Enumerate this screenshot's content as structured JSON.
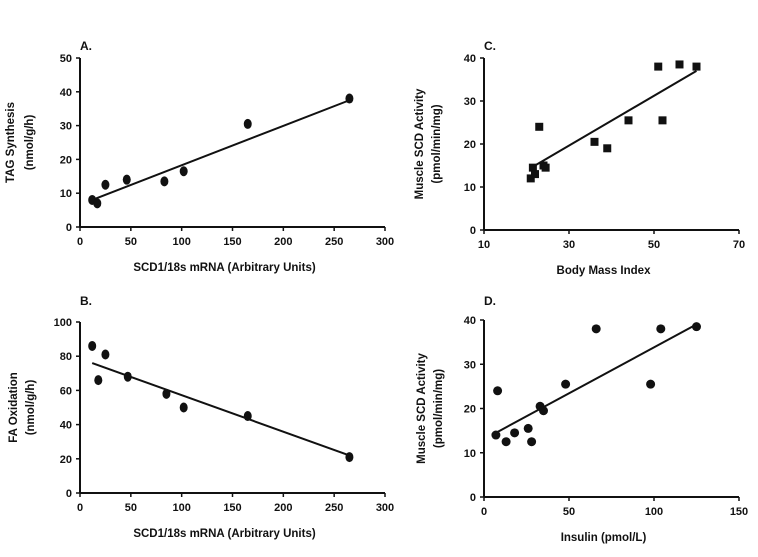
{
  "chart_data": [
    {
      "panel": "A.",
      "type": "scatter",
      "xlabel": "SCD1/18s mRNA (Arbitrary Units)",
      "ylabel": [
        "TAG Synthesis",
        "(nmol/g/h)"
      ],
      "xlim": [
        0,
        300
      ],
      "ylim": [
        0,
        50
      ],
      "xticks": [
        0,
        50,
        100,
        150,
        200,
        250,
        300
      ],
      "yticks": [
        0,
        10,
        20,
        30,
        40,
        50
      ],
      "points": [
        [
          12,
          8
        ],
        [
          17,
          7
        ],
        [
          25,
          12.5
        ],
        [
          46,
          14
        ],
        [
          83,
          13.5
        ],
        [
          102,
          16.5
        ],
        [
          165,
          30.5
        ],
        [
          265,
          38
        ]
      ],
      "fit": [
        [
          12,
          8
        ],
        [
          265,
          37.5
        ]
      ]
    },
    {
      "panel": "B.",
      "type": "scatter",
      "xlabel": "SCD1/18s mRNA (Arbitrary Units)",
      "ylabel": [
        "FA Oxidation",
        "(nmol/g/h)"
      ],
      "xlim": [
        0,
        300
      ],
      "ylim": [
        0,
        100
      ],
      "xticks": [
        0,
        50,
        100,
        150,
        200,
        250,
        300
      ],
      "yticks": [
        0,
        20,
        40,
        60,
        80,
        100
      ],
      "points": [
        [
          12,
          86
        ],
        [
          18,
          66
        ],
        [
          25,
          81
        ],
        [
          47,
          68
        ],
        [
          85,
          58
        ],
        [
          102,
          50
        ],
        [
          165,
          45
        ],
        [
          265,
          21
        ]
      ],
      "fit": [
        [
          12,
          76
        ],
        [
          265,
          22
        ]
      ]
    },
    {
      "panel": "C.",
      "type": "scatter",
      "xlabel": "Body Mass Index",
      "ylabel": [
        "Muscle SCD Activity",
        "(pmol/min/mg)"
      ],
      "xlim": [
        10,
        70
      ],
      "ylim": [
        0,
        40
      ],
      "xticks": [
        10,
        30,
        50,
        70
      ],
      "yticks": [
        0,
        10,
        20,
        30,
        40
      ],
      "points": [
        [
          21,
          12
        ],
        [
          21.5,
          14.5
        ],
        [
          22,
          13
        ],
        [
          23,
          24
        ],
        [
          24,
          15
        ],
        [
          24.5,
          14.5
        ],
        [
          36,
          20.5
        ],
        [
          39,
          19
        ],
        [
          44,
          25.5
        ],
        [
          51,
          38
        ],
        [
          52,
          25.5
        ],
        [
          56,
          38.5
        ],
        [
          60,
          38
        ]
      ],
      "fit": [
        [
          22,
          15
        ],
        [
          60,
          37
        ]
      ]
    },
    {
      "panel": "D.",
      "type": "scatter",
      "xlabel": "Insulin (pmol/L)",
      "ylabel": [
        "Muscle SCD Activity",
        "(pmol/min/mg)"
      ],
      "xlim": [
        0,
        150
      ],
      "ylim": [
        0,
        40
      ],
      "xticks": [
        0,
        50,
        100,
        150
      ],
      "yticks": [
        0,
        10,
        20,
        30,
        40
      ],
      "points": [
        [
          7,
          14
        ],
        [
          8,
          24
        ],
        [
          13,
          12.5
        ],
        [
          18,
          14.5
        ],
        [
          26,
          15.5
        ],
        [
          28,
          12.5
        ],
        [
          33,
          20.5
        ],
        [
          35,
          19.5
        ],
        [
          48,
          25.5
        ],
        [
          66,
          38
        ],
        [
          98,
          25.5
        ],
        [
          104,
          38
        ],
        [
          125,
          38.5
        ]
      ],
      "fit": [
        [
          7,
          14.5
        ],
        [
          125,
          39
        ]
      ]
    }
  ]
}
